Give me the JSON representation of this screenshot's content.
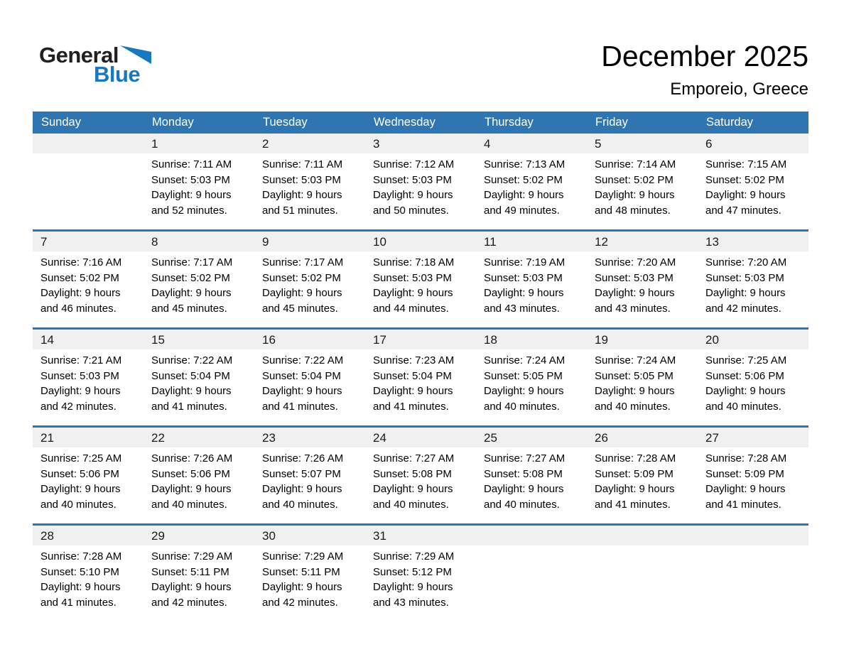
{
  "logo": {
    "general": "General",
    "blue": "Blue"
  },
  "header": {
    "title": "December 2025",
    "subtitle": "Emporeio, Greece"
  },
  "colors": {
    "header_blue": "#2E75B2",
    "week_border_blue": "#2E75B2",
    "band_gray": "#F0F0F0",
    "logo_blue": "#1878BE"
  },
  "calendar": {
    "weekdays": [
      "Sunday",
      "Monday",
      "Tuesday",
      "Wednesday",
      "Thursday",
      "Friday",
      "Saturday"
    ],
    "weeks": [
      [
        null,
        {
          "day": "1",
          "sunrise": "Sunrise: 7:11 AM",
          "sunset": "Sunset: 5:03 PM",
          "daylight1": "Daylight: 9 hours",
          "daylight2": "and 52 minutes."
        },
        {
          "day": "2",
          "sunrise": "Sunrise: 7:11 AM",
          "sunset": "Sunset: 5:03 PM",
          "daylight1": "Daylight: 9 hours",
          "daylight2": "and 51 minutes."
        },
        {
          "day": "3",
          "sunrise": "Sunrise: 7:12 AM",
          "sunset": "Sunset: 5:03 PM",
          "daylight1": "Daylight: 9 hours",
          "daylight2": "and 50 minutes."
        },
        {
          "day": "4",
          "sunrise": "Sunrise: 7:13 AM",
          "sunset": "Sunset: 5:02 PM",
          "daylight1": "Daylight: 9 hours",
          "daylight2": "and 49 minutes."
        },
        {
          "day": "5",
          "sunrise": "Sunrise: 7:14 AM",
          "sunset": "Sunset: 5:02 PM",
          "daylight1": "Daylight: 9 hours",
          "daylight2": "and 48 minutes."
        },
        {
          "day": "6",
          "sunrise": "Sunrise: 7:15 AM",
          "sunset": "Sunset: 5:02 PM",
          "daylight1": "Daylight: 9 hours",
          "daylight2": "and 47 minutes."
        }
      ],
      [
        {
          "day": "7",
          "sunrise": "Sunrise: 7:16 AM",
          "sunset": "Sunset: 5:02 PM",
          "daylight1": "Daylight: 9 hours",
          "daylight2": "and 46 minutes."
        },
        {
          "day": "8",
          "sunrise": "Sunrise: 7:17 AM",
          "sunset": "Sunset: 5:02 PM",
          "daylight1": "Daylight: 9 hours",
          "daylight2": "and 45 minutes."
        },
        {
          "day": "9",
          "sunrise": "Sunrise: 7:17 AM",
          "sunset": "Sunset: 5:02 PM",
          "daylight1": "Daylight: 9 hours",
          "daylight2": "and 45 minutes."
        },
        {
          "day": "10",
          "sunrise": "Sunrise: 7:18 AM",
          "sunset": "Sunset: 5:03 PM",
          "daylight1": "Daylight: 9 hours",
          "daylight2": "and 44 minutes."
        },
        {
          "day": "11",
          "sunrise": "Sunrise: 7:19 AM",
          "sunset": "Sunset: 5:03 PM",
          "daylight1": "Daylight: 9 hours",
          "daylight2": "and 43 minutes."
        },
        {
          "day": "12",
          "sunrise": "Sunrise: 7:20 AM",
          "sunset": "Sunset: 5:03 PM",
          "daylight1": "Daylight: 9 hours",
          "daylight2": "and 43 minutes."
        },
        {
          "day": "13",
          "sunrise": "Sunrise: 7:20 AM",
          "sunset": "Sunset: 5:03 PM",
          "daylight1": "Daylight: 9 hours",
          "daylight2": "and 42 minutes."
        }
      ],
      [
        {
          "day": "14",
          "sunrise": "Sunrise: 7:21 AM",
          "sunset": "Sunset: 5:03 PM",
          "daylight1": "Daylight: 9 hours",
          "daylight2": "and 42 minutes."
        },
        {
          "day": "15",
          "sunrise": "Sunrise: 7:22 AM",
          "sunset": "Sunset: 5:04 PM",
          "daylight1": "Daylight: 9 hours",
          "daylight2": "and 41 minutes."
        },
        {
          "day": "16",
          "sunrise": "Sunrise: 7:22 AM",
          "sunset": "Sunset: 5:04 PM",
          "daylight1": "Daylight: 9 hours",
          "daylight2": "and 41 minutes."
        },
        {
          "day": "17",
          "sunrise": "Sunrise: 7:23 AM",
          "sunset": "Sunset: 5:04 PM",
          "daylight1": "Daylight: 9 hours",
          "daylight2": "and 41 minutes."
        },
        {
          "day": "18",
          "sunrise": "Sunrise: 7:24 AM",
          "sunset": "Sunset: 5:05 PM",
          "daylight1": "Daylight: 9 hours",
          "daylight2": "and 40 minutes."
        },
        {
          "day": "19",
          "sunrise": "Sunrise: 7:24 AM",
          "sunset": "Sunset: 5:05 PM",
          "daylight1": "Daylight: 9 hours",
          "daylight2": "and 40 minutes."
        },
        {
          "day": "20",
          "sunrise": "Sunrise: 7:25 AM",
          "sunset": "Sunset: 5:06 PM",
          "daylight1": "Daylight: 9 hours",
          "daylight2": "and 40 minutes."
        }
      ],
      [
        {
          "day": "21",
          "sunrise": "Sunrise: 7:25 AM",
          "sunset": "Sunset: 5:06 PM",
          "daylight1": "Daylight: 9 hours",
          "daylight2": "and 40 minutes."
        },
        {
          "day": "22",
          "sunrise": "Sunrise: 7:26 AM",
          "sunset": "Sunset: 5:06 PM",
          "daylight1": "Daylight: 9 hours",
          "daylight2": "and 40 minutes."
        },
        {
          "day": "23",
          "sunrise": "Sunrise: 7:26 AM",
          "sunset": "Sunset: 5:07 PM",
          "daylight1": "Daylight: 9 hours",
          "daylight2": "and 40 minutes."
        },
        {
          "day": "24",
          "sunrise": "Sunrise: 7:27 AM",
          "sunset": "Sunset: 5:08 PM",
          "daylight1": "Daylight: 9 hours",
          "daylight2": "and 40 minutes."
        },
        {
          "day": "25",
          "sunrise": "Sunrise: 7:27 AM",
          "sunset": "Sunset: 5:08 PM",
          "daylight1": "Daylight: 9 hours",
          "daylight2": "and 40 minutes."
        },
        {
          "day": "26",
          "sunrise": "Sunrise: 7:28 AM",
          "sunset": "Sunset: 5:09 PM",
          "daylight1": "Daylight: 9 hours",
          "daylight2": "and 41 minutes."
        },
        {
          "day": "27",
          "sunrise": "Sunrise: 7:28 AM",
          "sunset": "Sunset: 5:09 PM",
          "daylight1": "Daylight: 9 hours",
          "daylight2": "and 41 minutes."
        }
      ],
      [
        {
          "day": "28",
          "sunrise": "Sunrise: 7:28 AM",
          "sunset": "Sunset: 5:10 PM",
          "daylight1": "Daylight: 9 hours",
          "daylight2": "and 41 minutes."
        },
        {
          "day": "29",
          "sunrise": "Sunrise: 7:29 AM",
          "sunset": "Sunset: 5:11 PM",
          "daylight1": "Daylight: 9 hours",
          "daylight2": "and 42 minutes."
        },
        {
          "day": "30",
          "sunrise": "Sunrise: 7:29 AM",
          "sunset": "Sunset: 5:11 PM",
          "daylight1": "Daylight: 9 hours",
          "daylight2": "and 42 minutes."
        },
        {
          "day": "31",
          "sunrise": "Sunrise: 7:29 AM",
          "sunset": "Sunset: 5:12 PM",
          "daylight1": "Daylight: 9 hours",
          "daylight2": "and 43 minutes."
        },
        null,
        null,
        null
      ]
    ]
  }
}
